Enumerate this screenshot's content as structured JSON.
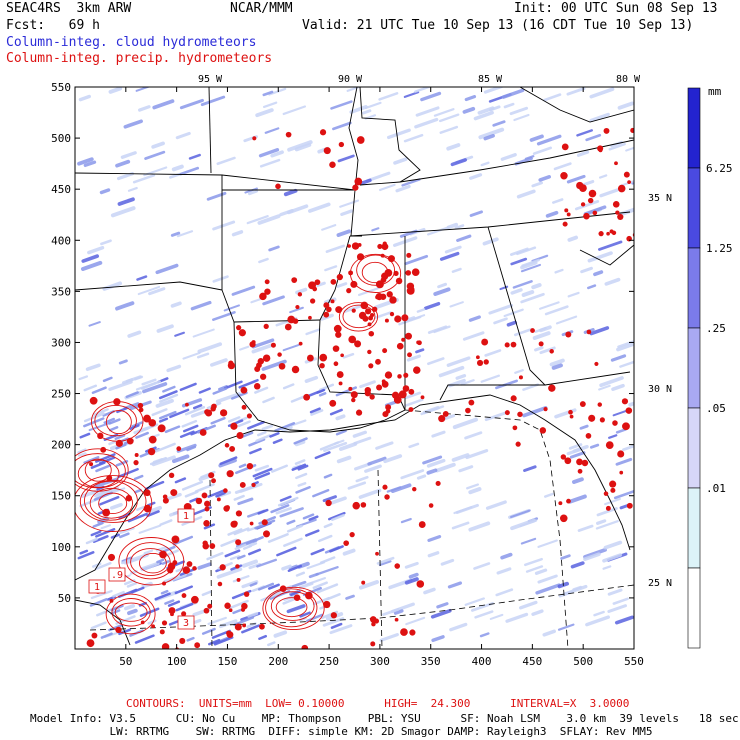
{
  "header": {
    "project": "SEAC4RS  3km ARW",
    "center": "NCAR/MMM",
    "init": "Init: 00 UTC Sun 08 Sep 13",
    "fcst": "Fcst:   69 h",
    "valid": "Valid: 21 UTC Tue 10 Sep 13 (16 CDT Tue 10 Sep 13)",
    "field1": "Column-integ. cloud hydrometeors",
    "field2": "Column-integ. precip. hydrometeors"
  },
  "colors": {
    "field1": "#2b2bd8",
    "field2": "#dd1111",
    "cloud_light": "#c8d4f6",
    "cloud_mid": "#8a98ea",
    "cloud_dark": "#5a63e0"
  },
  "legend": {
    "unit": "mm",
    "labels": [
      "6.25",
      "1.25",
      ".25",
      ".05",
      ".01"
    ],
    "colors": [
      "#2323cf",
      "#4a4ae0",
      "#7b7bea",
      "#a9a9f2",
      "#d6d6f8",
      "#dcf3f8",
      "#ffffff"
    ]
  },
  "map": {
    "top_labels": [
      "95 W",
      "90 W",
      "85 W",
      "80 W"
    ],
    "right_labels": [
      "35 N",
      "30 N",
      "25 N"
    ],
    "y_ticks": [
      "550",
      "500",
      "450",
      "400",
      "350",
      "300",
      "250",
      "200",
      "150",
      "100",
      "50"
    ],
    "x_ticks": [
      "50",
      "100",
      "150",
      "200",
      "250",
      "300",
      "350",
      "400",
      "450",
      "500",
      "550"
    ],
    "box_labels": [
      "1",
      ".9",
      "1",
      "3"
    ]
  },
  "footer": {
    "contours": "CONTOURS:  UNITS=mm  LOW= 0.10000      HIGH=  24.300      INTERVAL=X  3.0000",
    "model1": "Model Info: V3.5      CU: No Cu    MP: Thompson    PBL: YSU      SF: Noah LSM    3.0 km  39 levels   18 sec",
    "model2": "            LW: RRTMG    SW: RRTMG  DIFF: simple KM: 2D Smagor DAMP: Rayleigh3  SFLAY: Rev MM5"
  }
}
